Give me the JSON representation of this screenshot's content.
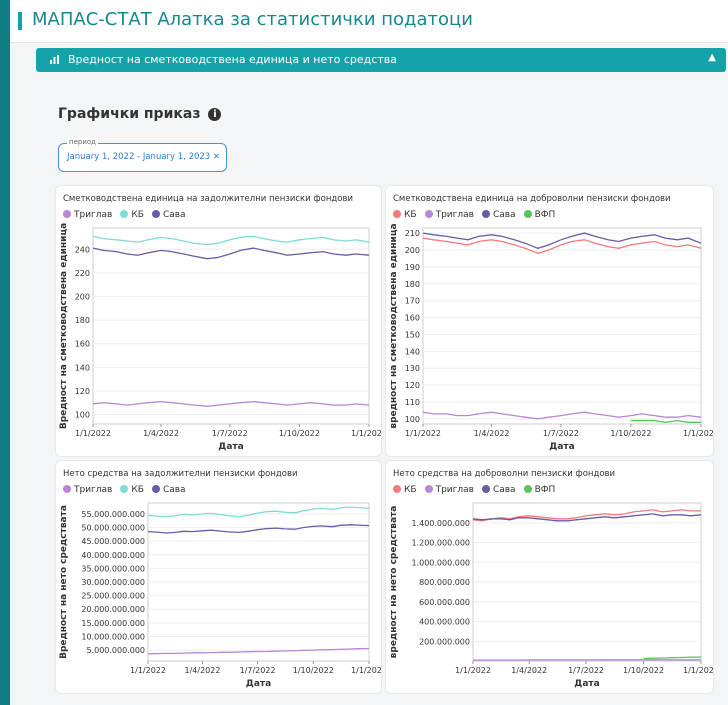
{
  "header": {
    "title": "МАПАС-СТАТ Алатка за статистички податоци"
  },
  "panel": {
    "title": "Вредност на сметководствена единица и нето средства"
  },
  "section": {
    "title": "Графички приказ"
  },
  "filter": {
    "label": "период",
    "value": "January 1, 2022 - January 1, 2023"
  },
  "chart_data": [
    {
      "type": "line",
      "title": "Сметководствена единица на задолжителни пензиски фондови",
      "y_label": "Вредност на сметководствена единица",
      "x_label": "Дата",
      "x": [
        "2022-01-01",
        "2022-01-15",
        "2022-02-01",
        "2022-02-15",
        "2022-03-01",
        "2022-03-15",
        "2022-04-01",
        "2022-04-15",
        "2022-05-01",
        "2022-05-15",
        "2022-06-01",
        "2022-06-15",
        "2022-07-01",
        "2022-07-15",
        "2022-08-01",
        "2022-08-15",
        "2022-09-01",
        "2022-09-15",
        "2022-10-01",
        "2022-10-15",
        "2022-11-01",
        "2022-11-15",
        "2022-12-01",
        "2022-12-15",
        "2023-01-01"
      ],
      "xlim": [
        "2022-01-01",
        "2023-01-01"
      ],
      "xticks": [
        {
          "value": "2022-01-01",
          "label": "1/1/2022"
        },
        {
          "value": "2022-04-01",
          "label": "1/4/2022"
        },
        {
          "value": "2022-07-01",
          "label": "1/7/2022"
        },
        {
          "value": "2022-10-01",
          "label": "1/10/2022"
        },
        {
          "value": "2023-01-01",
          "label": "1/1/2023"
        }
      ],
      "ylim": [
        92,
        258
      ],
      "yticks": [
        100,
        120,
        140,
        160,
        180,
        200,
        220,
        240
      ],
      "grid": true,
      "series": [
        {
          "name": "Триглав",
          "color": "#b986d2",
          "values": [
            109,
            110,
            109,
            108,
            109,
            110,
            111,
            110,
            109,
            108,
            107,
            108,
            109,
            110,
            111,
            110,
            109,
            108,
            109,
            110,
            109,
            108,
            108,
            109,
            108
          ]
        },
        {
          "name": "КБ",
          "color": "#7fdcd3",
          "values": [
            251,
            249,
            248,
            247,
            246,
            248,
            250,
            249,
            247,
            245,
            244,
            245,
            248,
            250,
            251,
            249,
            247,
            246,
            248,
            249,
            250,
            248,
            247,
            248,
            246
          ]
        },
        {
          "name": "Сава",
          "color": "#6b5aa6",
          "values": [
            241,
            239,
            238,
            236,
            235,
            237,
            239,
            238,
            236,
            234,
            232,
            233,
            236,
            239,
            241,
            239,
            237,
            235,
            236,
            237,
            238,
            236,
            235,
            236,
            235
          ]
        }
      ]
    },
    {
      "type": "line",
      "title": "Сметководствена единица на доброволни пензиски фондови",
      "y_label": "вредност на сметководствена единица",
      "x_label": "Дата",
      "x": [
        "2022-01-01",
        "2022-01-15",
        "2022-02-01",
        "2022-02-15",
        "2022-03-01",
        "2022-03-15",
        "2022-04-01",
        "2022-04-15",
        "2022-05-01",
        "2022-05-15",
        "2022-06-01",
        "2022-06-15",
        "2022-07-01",
        "2022-07-15",
        "2022-08-01",
        "2022-08-15",
        "2022-09-01",
        "2022-09-15",
        "2022-10-01",
        "2022-10-15",
        "2022-11-01",
        "2022-11-15",
        "2022-12-01",
        "2022-12-15",
        "2023-01-01"
      ],
      "xlim": [
        "2022-01-01",
        "2023-01-01"
      ],
      "xticks": [
        {
          "value": "2022-01-01",
          "label": "1/1/2022"
        },
        {
          "value": "2022-04-01",
          "label": "1/4/2022"
        },
        {
          "value": "2022-07-01",
          "label": "1/7/2022"
        },
        {
          "value": "2022-10-01",
          "label": "1/10/2022"
        },
        {
          "value": "2023-01-01",
          "label": "1/1/2023"
        }
      ],
      "ylim": [
        97,
        213
      ],
      "yticks": [
        100,
        110,
        120,
        130,
        140,
        150,
        160,
        170,
        180,
        190,
        200,
        210
      ],
      "grid": true,
      "series": [
        {
          "name": "КБ",
          "color": "#f27b7b",
          "values": [
            207,
            206,
            205,
            204,
            203,
            205,
            206,
            205,
            203,
            201,
            198,
            200,
            203,
            205,
            206,
            204,
            202,
            201,
            203,
            204,
            205,
            203,
            202,
            203,
            201
          ]
        },
        {
          "name": "Триглав",
          "color": "#b986d2",
          "values": [
            104,
            103,
            103,
            102,
            102,
            103,
            104,
            103,
            102,
            101,
            100,
            101,
            102,
            103,
            104,
            103,
            102,
            101,
            102,
            103,
            102,
            101,
            101,
            102,
            101
          ]
        },
        {
          "name": "Сава",
          "color": "#6b5aa6",
          "values": [
            210,
            209,
            208,
            207,
            206,
            208,
            209,
            208,
            206,
            204,
            201,
            203,
            206,
            208,
            210,
            208,
            206,
            205,
            207,
            208,
            209,
            207,
            206,
            207,
            204
          ]
        },
        {
          "name": "ВФП",
          "color": "#5cc35c",
          "values": [
            null,
            null,
            null,
            null,
            null,
            null,
            null,
            null,
            null,
            null,
            null,
            null,
            null,
            null,
            null,
            null,
            null,
            null,
            99,
            99,
            99,
            98,
            99,
            98,
            98
          ]
        }
      ]
    },
    {
      "type": "line",
      "title": "Нето средства на задолжителни пензиски фондови",
      "y_label": "Вредност на нето средствата",
      "x_label": "Дата",
      "x": [
        "2022-01-01",
        "2022-01-15",
        "2022-02-01",
        "2022-02-15",
        "2022-03-01",
        "2022-03-15",
        "2022-04-01",
        "2022-04-15",
        "2022-05-01",
        "2022-05-15",
        "2022-06-01",
        "2022-06-15",
        "2022-07-01",
        "2022-07-15",
        "2022-08-01",
        "2022-08-15",
        "2022-09-01",
        "2022-09-15",
        "2022-10-01",
        "2022-10-15",
        "2022-11-01",
        "2022-11-15",
        "2022-12-01",
        "2022-12-15",
        "2023-01-01"
      ],
      "xlim": [
        "2022-01-01",
        "2023-01-01"
      ],
      "xticks": [
        {
          "value": "2022-01-01",
          "label": "1/1/2022"
        },
        {
          "value": "2022-04-01",
          "label": "1/4/2022"
        },
        {
          "value": "2022-07-01",
          "label": "1/7/2022"
        },
        {
          "value": "2022-10-01",
          "label": "1/10/2022"
        },
        {
          "value": "2023-01-01",
          "label": "1/1/2023"
        }
      ],
      "ylim": [
        1000000000,
        59000000000
      ],
      "yticks": [
        {
          "value": 5000000000,
          "label": "5.000.000.000"
        },
        {
          "value": 10000000000,
          "label": "10.000.000.000"
        },
        {
          "value": 15000000000,
          "label": "15.000.000.000"
        },
        {
          "value": 20000000000,
          "label": "20.000.000.000"
        },
        {
          "value": 25000000000,
          "label": "25.000.000.000"
        },
        {
          "value": 30000000000,
          "label": "30.000.000.000"
        },
        {
          "value": 35000000000,
          "label": "35.000.000.000"
        },
        {
          "value": 40000000000,
          "label": "40.000.000.000"
        },
        {
          "value": 45000000000,
          "label": "45.000.000.000"
        },
        {
          "value": 50000000000,
          "label": "50.000.000.000"
        },
        {
          "value": 55000000000,
          "label": "55.000.000.000"
        }
      ],
      "grid": true,
      "series": [
        {
          "name": "Триглав",
          "color": "#b986d2",
          "values": [
            3600000000,
            3700000000,
            3800000000,
            3800000000,
            3900000000,
            4000000000,
            4000000000,
            4100000000,
            4200000000,
            4200000000,
            4300000000,
            4400000000,
            4500000000,
            4500000000,
            4600000000,
            4700000000,
            4800000000,
            4900000000,
            5000000000,
            5100000000,
            5200000000,
            5300000000,
            5400000000,
            5500000000,
            5600000000
          ]
        },
        {
          "name": "КБ",
          "color": "#7fdcd3",
          "values": [
            54500000000,
            54200000000,
            54000000000,
            54300000000,
            54800000000,
            54600000000,
            55000000000,
            55200000000,
            54700000000,
            54300000000,
            54000000000,
            54500000000,
            55300000000,
            55800000000,
            56000000000,
            55600000000,
            55400000000,
            56200000000,
            56800000000,
            57000000000,
            56600000000,
            57200000000,
            57500000000,
            57300000000,
            57000000000
          ]
        },
        {
          "name": "Сава",
          "color": "#6b5aa6",
          "values": [
            48500000000,
            48300000000,
            48000000000,
            48200000000,
            48600000000,
            48500000000,
            48800000000,
            49000000000,
            48700000000,
            48400000000,
            48200000000,
            48600000000,
            49200000000,
            49600000000,
            49800000000,
            49500000000,
            49400000000,
            50000000000,
            50400000000,
            50600000000,
            50300000000,
            50800000000,
            51000000000,
            50900000000,
            50700000000
          ]
        }
      ]
    },
    {
      "type": "line",
      "title": "Нето средства на доброволни пензиски фондови",
      "y_label": "вредност на нето средствата",
      "x_label": "Дата",
      "x": [
        "2022-01-01",
        "2022-01-15",
        "2022-02-01",
        "2022-02-15",
        "2022-03-01",
        "2022-03-15",
        "2022-04-01",
        "2022-04-15",
        "2022-05-01",
        "2022-05-15",
        "2022-06-01",
        "2022-06-15",
        "2022-07-01",
        "2022-07-15",
        "2022-08-01",
        "2022-08-15",
        "2022-09-01",
        "2022-09-15",
        "2022-10-01",
        "2022-10-15",
        "2022-11-01",
        "2022-11-15",
        "2022-12-01",
        "2022-12-15",
        "2023-01-01"
      ],
      "xlim": [
        "2022-01-01",
        "2023-01-01"
      ],
      "xticks": [
        {
          "value": "2022-01-01",
          "label": "1/1/2022"
        },
        {
          "value": "2022-04-01",
          "label": "1/4/2022"
        },
        {
          "value": "2022-07-01",
          "label": "1/7/2022"
        },
        {
          "value": "2022-10-01",
          "label": "1/10/2022"
        },
        {
          "value": "2023-01-01",
          "label": "1/1/2023"
        }
      ],
      "ylim": [
        0,
        1600000000
      ],
      "yticks": [
        {
          "value": 200000000,
          "label": "200.000.000"
        },
        {
          "value": 400000000,
          "label": "400.000.000"
        },
        {
          "value": 600000000,
          "label": "600.000.000"
        },
        {
          "value": 800000000,
          "label": "800.000.000"
        },
        {
          "value": 1000000000,
          "label": "1.000.000.000"
        },
        {
          "value": 1200000000,
          "label": "1.200.000.000"
        },
        {
          "value": 1400000000,
          "label": "1.400.000.000"
        }
      ],
      "grid": true,
      "series": [
        {
          "name": "КБ",
          "color": "#f27b7b",
          "values": [
            1430000000,
            1420000000,
            1440000000,
            1450000000,
            1440000000,
            1460000000,
            1470000000,
            1460000000,
            1450000000,
            1440000000,
            1440000000,
            1450000000,
            1470000000,
            1480000000,
            1490000000,
            1480000000,
            1490000000,
            1510000000,
            1520000000,
            1530000000,
            1510000000,
            1520000000,
            1530000000,
            1520000000,
            1520000000
          ]
        },
        {
          "name": "Триглав",
          "color": "#b986d2",
          "values": [
            10000000,
            10000000,
            10000000,
            10000000,
            10000000,
            10000000,
            11000000,
            11000000,
            11000000,
            11000000,
            11000000,
            11000000,
            11000000,
            11000000,
            12000000,
            12000000,
            12000000,
            12000000,
            12000000,
            12000000,
            12000000,
            12000000,
            12000000,
            12000000,
            12000000
          ]
        },
        {
          "name": "Сава",
          "color": "#6b5aa6",
          "values": [
            1440000000,
            1430000000,
            1440000000,
            1440000000,
            1430000000,
            1450000000,
            1450000000,
            1440000000,
            1430000000,
            1420000000,
            1420000000,
            1430000000,
            1440000000,
            1450000000,
            1460000000,
            1450000000,
            1460000000,
            1470000000,
            1480000000,
            1490000000,
            1470000000,
            1480000000,
            1480000000,
            1470000000,
            1480000000
          ]
        },
        {
          "name": "ВФП",
          "color": "#5cc35c",
          "values": [
            null,
            null,
            null,
            null,
            null,
            null,
            null,
            null,
            null,
            null,
            null,
            null,
            null,
            null,
            null,
            null,
            null,
            null,
            25000000,
            28000000,
            30000000,
            33000000,
            35000000,
            38000000,
            40000000
          ]
        }
      ]
    }
  ]
}
